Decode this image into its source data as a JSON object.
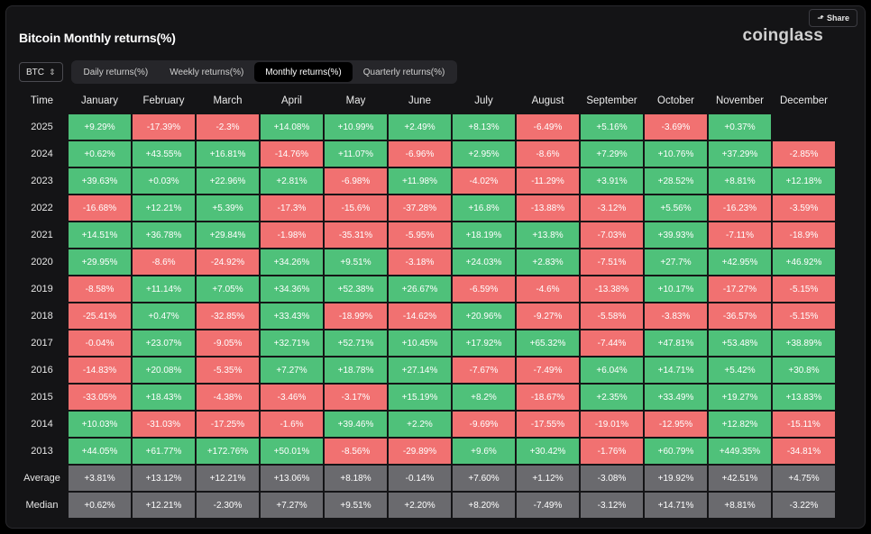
{
  "header": {
    "title": "Bitcoin Monthly returns(%)",
    "brand": "coinglass",
    "share_label": "Share"
  },
  "controls": {
    "asset": "BTC",
    "tabs": [
      {
        "label": "Daily returns(%)",
        "active": false
      },
      {
        "label": "Weekly returns(%)",
        "active": false
      },
      {
        "label": "Monthly returns(%)",
        "active": true
      },
      {
        "label": "Quarterly returns(%)",
        "active": false
      }
    ]
  },
  "colors": {
    "positive": "#4fc17a",
    "negative": "#f17171",
    "stat": "#6a6a6e"
  },
  "table": {
    "columns": [
      "Time",
      "January",
      "February",
      "March",
      "April",
      "May",
      "June",
      "July",
      "August",
      "September",
      "October",
      "November",
      "December"
    ],
    "rows": [
      {
        "year": "2025",
        "values": [
          "+9.29%",
          "-17.39%",
          "-2.3%",
          "+14.08%",
          "+10.99%",
          "+2.49%",
          "+8.13%",
          "-6.49%",
          "+5.16%",
          "-3.69%",
          "+0.37%",
          ""
        ]
      },
      {
        "year": "2024",
        "values": [
          "+0.62%",
          "+43.55%",
          "+16.81%",
          "-14.76%",
          "+11.07%",
          "-6.96%",
          "+2.95%",
          "-8.6%",
          "+7.29%",
          "+10.76%",
          "+37.29%",
          "-2.85%"
        ]
      },
      {
        "year": "2023",
        "values": [
          "+39.63%",
          "+0.03%",
          "+22.96%",
          "+2.81%",
          "-6.98%",
          "+11.98%",
          "-4.02%",
          "-11.29%",
          "+3.91%",
          "+28.52%",
          "+8.81%",
          "+12.18%"
        ]
      },
      {
        "year": "2022",
        "values": [
          "-16.68%",
          "+12.21%",
          "+5.39%",
          "-17.3%",
          "-15.6%",
          "-37.28%",
          "+16.8%",
          "-13.88%",
          "-3.12%",
          "+5.56%",
          "-16.23%",
          "-3.59%"
        ]
      },
      {
        "year": "2021",
        "values": [
          "+14.51%",
          "+36.78%",
          "+29.84%",
          "-1.98%",
          "-35.31%",
          "-5.95%",
          "+18.19%",
          "+13.8%",
          "-7.03%",
          "+39.93%",
          "-7.11%",
          "-18.9%"
        ]
      },
      {
        "year": "2020",
        "values": [
          "+29.95%",
          "-8.6%",
          "-24.92%",
          "+34.26%",
          "+9.51%",
          "-3.18%",
          "+24.03%",
          "+2.83%",
          "-7.51%",
          "+27.7%",
          "+42.95%",
          "+46.92%"
        ]
      },
      {
        "year": "2019",
        "values": [
          "-8.58%",
          "+11.14%",
          "+7.05%",
          "+34.36%",
          "+52.38%",
          "+26.67%",
          "-6.59%",
          "-4.6%",
          "-13.38%",
          "+10.17%",
          "-17.27%",
          "-5.15%"
        ]
      },
      {
        "year": "2018",
        "values": [
          "-25.41%",
          "+0.47%",
          "-32.85%",
          "+33.43%",
          "-18.99%",
          "-14.62%",
          "+20.96%",
          "-9.27%",
          "-5.58%",
          "-3.83%",
          "-36.57%",
          "-5.15%"
        ]
      },
      {
        "year": "2017",
        "values": [
          "-0.04%",
          "+23.07%",
          "-9.05%",
          "+32.71%",
          "+52.71%",
          "+10.45%",
          "+17.92%",
          "+65.32%",
          "-7.44%",
          "+47.81%",
          "+53.48%",
          "+38.89%"
        ]
      },
      {
        "year": "2016",
        "values": [
          "-14.83%",
          "+20.08%",
          "-5.35%",
          "+7.27%",
          "+18.78%",
          "+27.14%",
          "-7.67%",
          "-7.49%",
          "+6.04%",
          "+14.71%",
          "+5.42%",
          "+30.8%"
        ]
      },
      {
        "year": "2015",
        "values": [
          "-33.05%",
          "+18.43%",
          "-4.38%",
          "-3.46%",
          "-3.17%",
          "+15.19%",
          "+8.2%",
          "-18.67%",
          "+2.35%",
          "+33.49%",
          "+19.27%",
          "+13.83%"
        ]
      },
      {
        "year": "2014",
        "values": [
          "+10.03%",
          "-31.03%",
          "-17.25%",
          "-1.6%",
          "+39.46%",
          "+2.2%",
          "-9.69%",
          "-17.55%",
          "-19.01%",
          "-12.95%",
          "+12.82%",
          "-15.11%"
        ]
      },
      {
        "year": "2013",
        "values": [
          "+44.05%",
          "+61.77%",
          "+172.76%",
          "+50.01%",
          "-8.56%",
          "-29.89%",
          "+9.6%",
          "+30.42%",
          "-1.76%",
          "+60.79%",
          "+449.35%",
          "-34.81%"
        ]
      }
    ],
    "stats": [
      {
        "label": "Average",
        "values": [
          "+3.81%",
          "+13.12%",
          "+12.21%",
          "+13.06%",
          "+8.18%",
          "-0.14%",
          "+7.60%",
          "+1.12%",
          "-3.08%",
          "+19.92%",
          "+42.51%",
          "+4.75%"
        ]
      },
      {
        "label": "Median",
        "values": [
          "+0.62%",
          "+12.21%",
          "-2.30%",
          "+7.27%",
          "+9.51%",
          "+2.20%",
          "+8.20%",
          "-7.49%",
          "-3.12%",
          "+14.71%",
          "+8.81%",
          "-3.22%"
        ]
      }
    ]
  }
}
